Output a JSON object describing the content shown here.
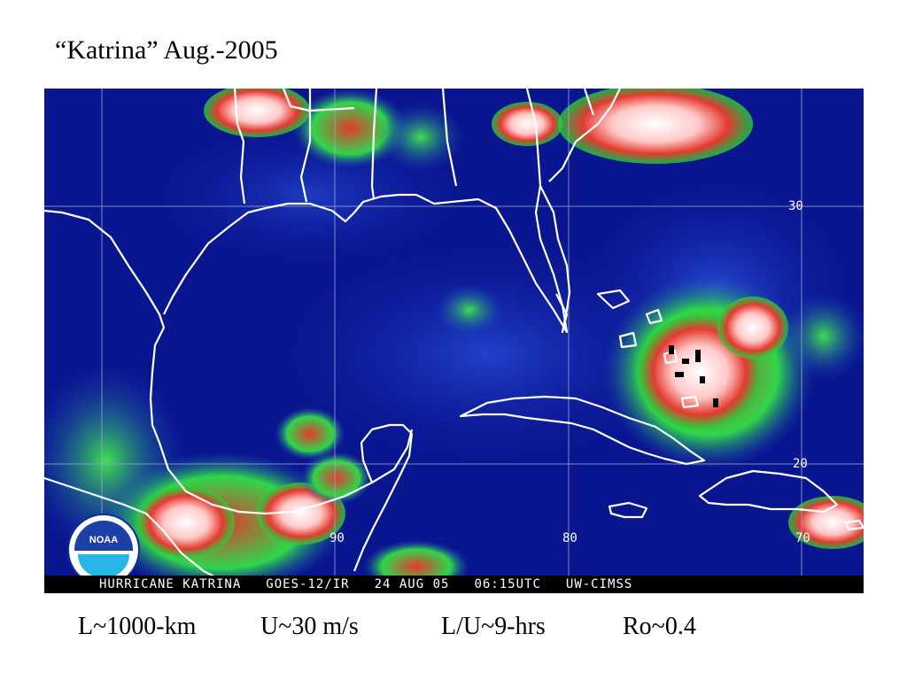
{
  "title": "“Katrina” Aug.-2005",
  "image": {
    "caption_items": [
      "HURRICANE KATRINA",
      "GOES-12/IR",
      "24 AUG 05",
      "06:15UTC",
      "UW-CIMSS"
    ],
    "grid_labels": {
      "lat_30": "30",
      "lat_20": "20",
      "lon_90": "90",
      "lon_80": "80",
      "lon_70": "70"
    },
    "logo_text": "NOAA"
  },
  "stats": {
    "length_scale": "L~1000-km",
    "velocity": "U~30 m/s",
    "time_scale": "L/U~9-hrs",
    "rossby": "Ro~0.4"
  },
  "colors": {
    "ocean": "#0a1590",
    "low_cloud": "#1fd43a",
    "mid_cloud": "#e03a2e",
    "high_cloud": "#ffe6e6",
    "coast": "#ffffff"
  }
}
